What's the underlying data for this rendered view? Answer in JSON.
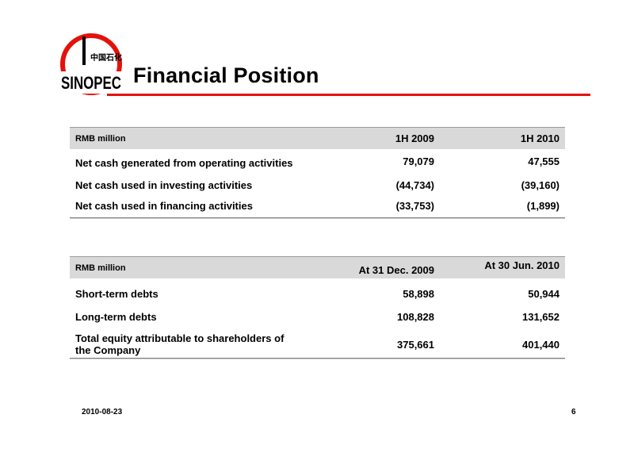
{
  "header": {
    "logo_text": "SINOPEC",
    "logo_chinese": "中国石化",
    "title": "Financial Position"
  },
  "cash_flow_table": {
    "columns": [
      "RMB million",
      "1H 2009",
      "1H 2010"
    ],
    "rows": [
      {
        "label": "Net cash generated from operating activities",
        "v1": "79,079",
        "v2": "47,555"
      },
      {
        "label": "Net cash used in investing activities",
        "v1": "(44,734)",
        "v2": "(39,160)"
      },
      {
        "label": "Net cash used in financing activities",
        "v1": "(33,753)",
        "v2": "(1,899)"
      }
    ]
  },
  "debt_table": {
    "columns": [
      "RMB million",
      "At 31 Dec. 2009",
      "At 30 Jun. 2010"
    ],
    "rows": [
      {
        "label": "Short-term debts",
        "v1": "58,898",
        "v2": "50,944"
      },
      {
        "label": "Long-term debts",
        "v1": "108,828",
        "v2": "131,652"
      },
      {
        "label_line1": "Total equity attributable to shareholders of",
        "label_line2": "the Company",
        "v1": "375,661",
        "v2": "401,440"
      }
    ]
  },
  "footer": {
    "date": "2010-08-23",
    "page": "6"
  },
  "colors": {
    "accent_red": "#e3120b",
    "header_gray": "#d9d9d9"
  }
}
